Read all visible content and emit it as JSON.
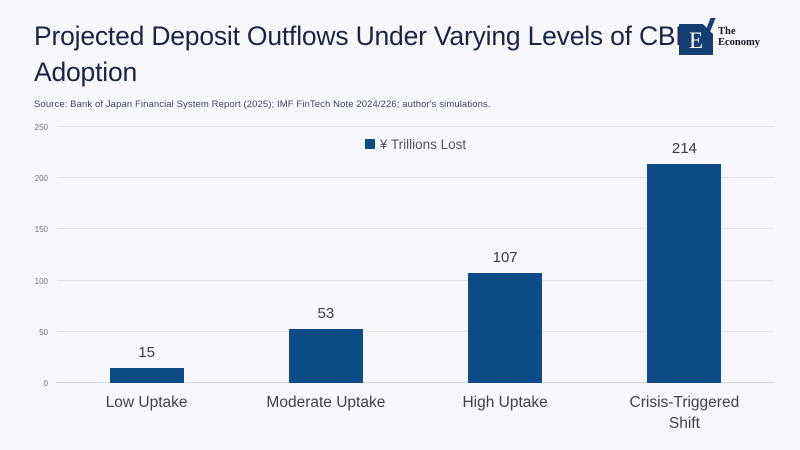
{
  "header": {
    "title": "Projected Deposit Outflows Under Varying Levels of CBDC Adoption",
    "source": "Source: Bank of Japan Financial System Report (2025); IMF FinTech Note 2024/226; author's simulations.",
    "logo": {
      "symbol": "E",
      "name_line1": "The",
      "name_line2": "Economy"
    }
  },
  "chart_data": {
    "type": "bar",
    "title": "Projected Deposit Outflows Under Varying Levels of CBDC Adoption",
    "legend": "¥ Trillions Lost",
    "legend_position": "top-center",
    "categories": [
      "Low Uptake",
      "Moderate Uptake",
      "High Uptake",
      "Crisis-Triggered Shift"
    ],
    "values": [
      15,
      53,
      107,
      214
    ],
    "data_labels": [
      "15",
      "53",
      "107",
      "214"
    ],
    "xlabel": "",
    "ylabel": "",
    "ylim": [
      0,
      250
    ],
    "yticks": [
      0,
      50,
      100,
      150,
      200,
      250
    ],
    "grid": true,
    "colors": {
      "bar": "#0d4c87",
      "background": "#f8f8fc",
      "title_text": "#1b2347",
      "gridline": "#e7e8ef"
    }
  }
}
